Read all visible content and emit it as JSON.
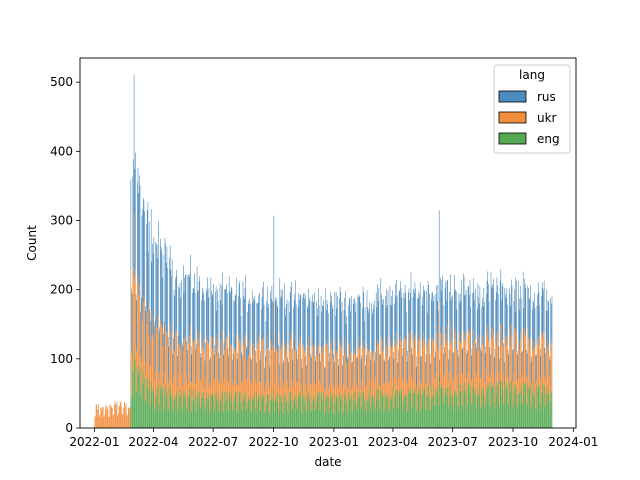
{
  "chart_data": {
    "type": "bar",
    "subtype": "stacked-histogram",
    "title": "",
    "xlabel": "date",
    "ylabel": "Count",
    "x_ticks": [
      "2022-01",
      "2022-04",
      "2022-07",
      "2022-10",
      "2023-01",
      "2023-04",
      "2023-07",
      "2023-10",
      "2024-01"
    ],
    "y_ticks": [
      0,
      100,
      200,
      300,
      400,
      500
    ],
    "xlim": [
      "2021-12-10",
      "2024-01-05"
    ],
    "ylim": [
      0,
      535
    ],
    "legend": {
      "title": "lang",
      "position": "top-right"
    },
    "series": [
      {
        "name": "rus",
        "color": "#4c8bbd"
      },
      {
        "name": "ukr",
        "color": "#f28e3c"
      },
      {
        "name": "eng",
        "color": "#55a952"
      }
    ],
    "date_range": [
      "2022-01-01",
      "2023-11-29"
    ],
    "anchors": {
      "rus": [
        [
          "2022-01-01",
          0
        ],
        [
          "2022-02-24",
          0
        ],
        [
          "2022-02-25",
          140
        ],
        [
          "2022-03-05",
          160
        ],
        [
          "2022-03-15",
          140
        ],
        [
          "2022-04-01",
          130
        ],
        [
          "2022-05-01",
          95
        ],
        [
          "2022-07-01",
          75
        ],
        [
          "2022-10-01",
          70
        ],
        [
          "2023-01-01",
          70
        ],
        [
          "2023-04-01",
          70
        ],
        [
          "2023-07-01",
          70
        ],
        [
          "2023-10-01",
          70
        ],
        [
          "2023-11-29",
          65
        ]
      ],
      "ukr": [
        [
          "2022-01-01",
          30
        ],
        [
          "2022-02-24",
          35
        ],
        [
          "2022-02-25",
          120
        ],
        [
          "2022-03-05",
          130
        ],
        [
          "2022-03-15",
          100
        ],
        [
          "2022-04-01",
          90
        ],
        [
          "2022-05-01",
          80
        ],
        [
          "2022-07-01",
          75
        ],
        [
          "2022-10-01",
          75
        ],
        [
          "2023-01-01",
          65
        ],
        [
          "2023-04-01",
          70
        ],
        [
          "2023-07-01",
          75
        ],
        [
          "2023-10-01",
          70
        ],
        [
          "2023-11-29",
          70
        ]
      ],
      "eng": [
        [
          "2022-01-01",
          0
        ],
        [
          "2022-02-24",
          0
        ],
        [
          "2022-02-25",
          90
        ],
        [
          "2022-03-05",
          90
        ],
        [
          "2022-03-15",
          70
        ],
        [
          "2022-04-01",
          55
        ],
        [
          "2022-05-01",
          50
        ],
        [
          "2022-07-01",
          45
        ],
        [
          "2022-10-01",
          45
        ],
        [
          "2023-01-01",
          45
        ],
        [
          "2023-04-01",
          50
        ],
        [
          "2023-07-01",
          55
        ],
        [
          "2023-10-01",
          60
        ],
        [
          "2023-11-29",
          55
        ]
      ]
    },
    "notable_points": [
      {
        "date": "2022-03-02",
        "total": 510
      },
      {
        "date": "2022-10-01",
        "total": 307
      },
      {
        "date": "2023-06-10",
        "total": 315
      }
    ]
  }
}
